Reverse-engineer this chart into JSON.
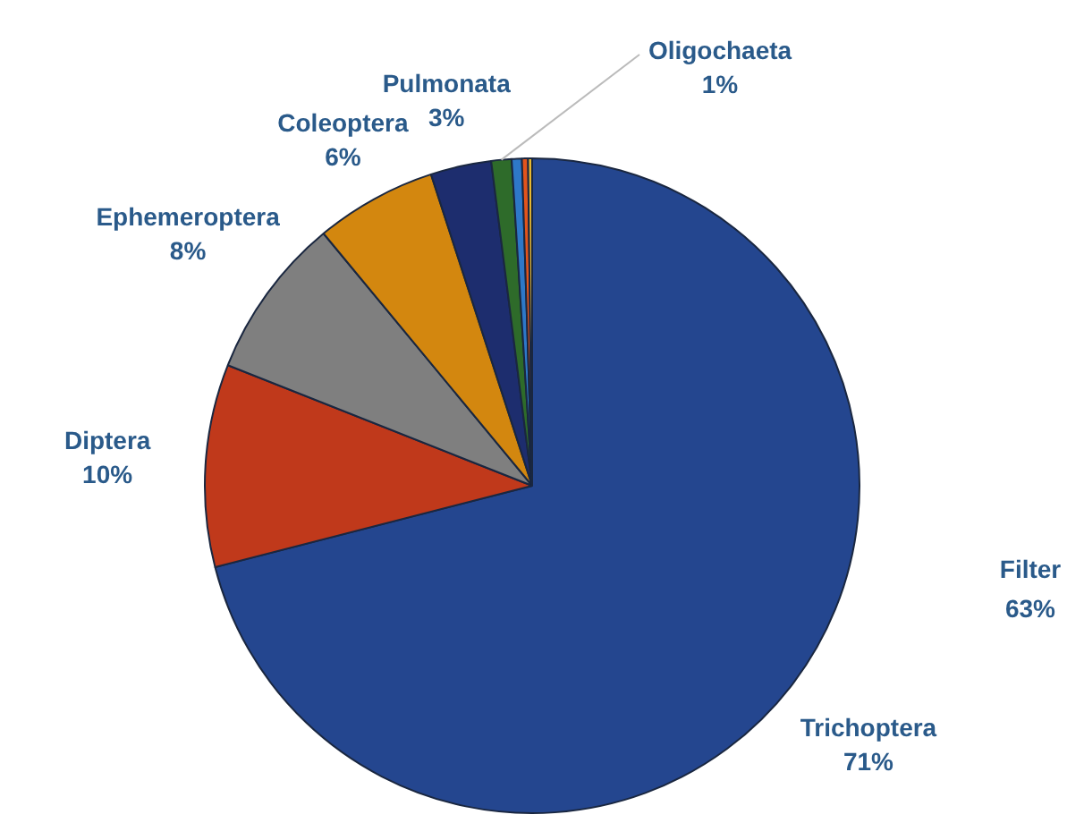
{
  "chart_data": {
    "type": "pie",
    "categories": [
      "Trichoptera",
      "Diptera",
      "Ephemeroptera",
      "Coleoptera",
      "Pulmonata",
      "Oligochaeta",
      null,
      null,
      null
    ],
    "values": [
      71,
      10,
      8,
      6,
      3,
      1,
      0.5,
      0.3,
      0.2
    ],
    "value_labels": [
      "71%",
      "10%",
      "8%",
      "6%",
      "3%",
      "1%",
      null,
      null,
      null
    ],
    "colors": [
      "#24468f",
      "#c0391b",
      "#7f7f7f",
      "#d3870f",
      "#1d2d6e",
      "#2e6b2a",
      "#2e78c8",
      "#e2541c",
      "#e8b830"
    ],
    "annotations": [
      "Filter\n63%"
    ],
    "legend": false
  }
}
